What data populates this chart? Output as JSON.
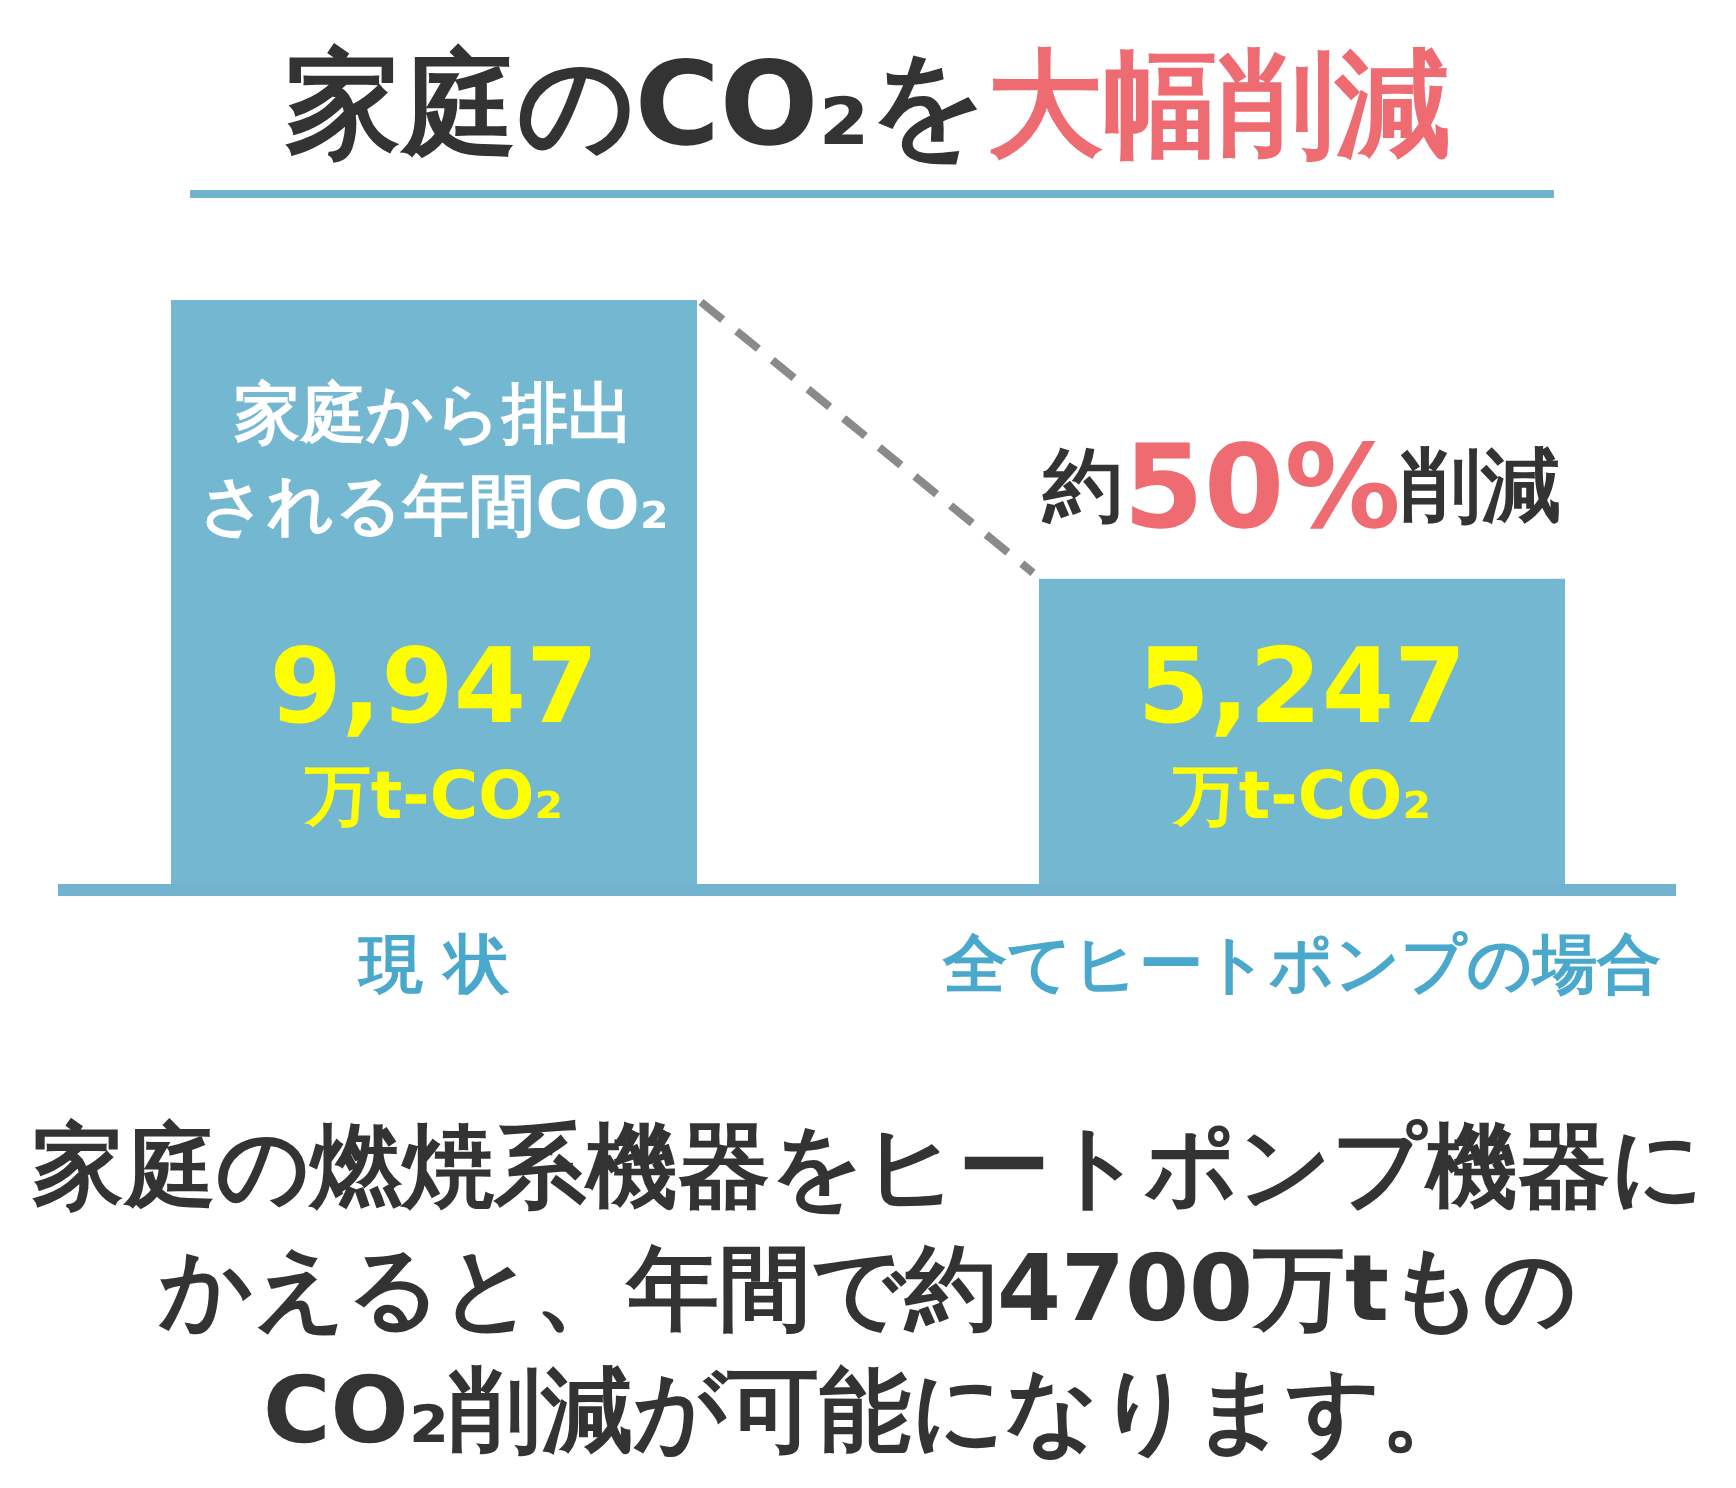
{
  "chart_data": {
    "type": "bar",
    "title": "家庭のCO₂を大幅削減",
    "categories": [
      "現 状",
      "全てヒートポンプの場合"
    ],
    "values": [
      9947,
      5247
    ],
    "value_labels": [
      "9,947\n万t-CO₂",
      "5,247\n万t-CO₂"
    ],
    "color": "#74b7d0",
    "annotations": [
      "家庭から排出される年間CO₂",
      "約50%削減",
      "家庭の燃焼系機器をヒートポンプ機器にかえると、年間で約4700万tものCO₂削減が可能になります。"
    ]
  }
}
